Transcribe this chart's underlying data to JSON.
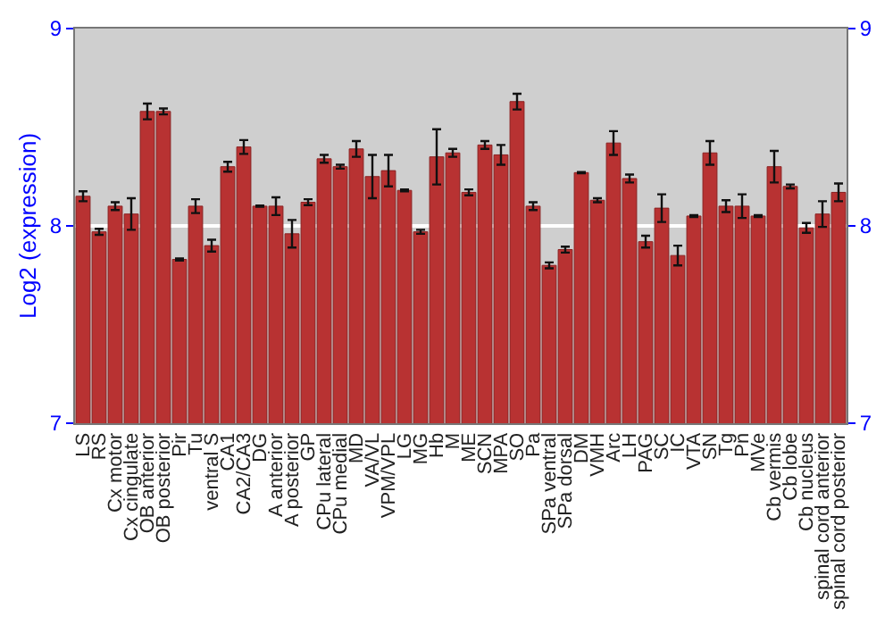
{
  "chart_data": {
    "type": "bar",
    "ylabel": "Log2 (expression)",
    "categories": [
      "LS",
      "RS",
      "Cx motor",
      "Cx cingulate",
      "OB anterior",
      "OB posterior",
      "Pir",
      "Tu",
      "ventral S",
      "CA1",
      "CA2/CA3",
      "DG",
      "A anterior",
      "A posterior",
      "GP",
      "CPu lateral",
      "CPu medial",
      "MD",
      "VA/VL",
      "VPM/VPL",
      "LG",
      "MG",
      "Hb",
      "M",
      "ME",
      "SCN",
      "MPA",
      "SO",
      "Pa",
      "SPa ventral",
      "SPa dorsal",
      "DM",
      "VMH",
      "Arc",
      "LH",
      "PAG",
      "SC",
      "IC",
      "VTA",
      "SN",
      "Tg",
      "Pn",
      "MVe",
      "Cb vermis",
      "Cb lobe",
      "Cb nucleus",
      "spinal cord anterior",
      "spinal cord posterior"
    ],
    "series": [
      {
        "color": "#b83232",
        "values": [
          8.15,
          7.97,
          8.1,
          8.06,
          8.58,
          8.58,
          7.83,
          8.1,
          7.9,
          8.3,
          8.4,
          8.1,
          8.1,
          7.96,
          8.12,
          8.34,
          8.3,
          8.39,
          8.25,
          8.28,
          8.18,
          7.97,
          8.35,
          8.37,
          8.17,
          8.41,
          8.36,
          8.63,
          8.1,
          7.8,
          7.88,
          8.27,
          8.13,
          8.42,
          8.24,
          7.92,
          8.09,
          7.85,
          8.05,
          8.37,
          8.1,
          8.1,
          8.05,
          8.3,
          8.2,
          7.99,
          8.06,
          8.17
        ],
        "errors": [
          0.025,
          0.015,
          0.02,
          0.08,
          0.04,
          0.015,
          0.005,
          0.035,
          0.03,
          0.025,
          0.035,
          0.003,
          0.045,
          0.07,
          0.015,
          0.02,
          0.01,
          0.04,
          0.11,
          0.08,
          0.005,
          0.01,
          0.14,
          0.02,
          0.015,
          0.02,
          0.05,
          0.04,
          0.02,
          0.015,
          0.015,
          0.003,
          0.01,
          0.06,
          0.02,
          0.03,
          0.07,
          0.05,
          0.005,
          0.06,
          0.03,
          0.06,
          0.005,
          0.08,
          0.01,
          0.025,
          0.065,
          0.045
        ]
      }
    ],
    "ylim": [
      7,
      9
    ],
    "yticks": [
      7,
      8,
      9
    ],
    "y2lim": [
      7,
      9
    ],
    "y2ticks": [
      7,
      8,
      9
    ],
    "grid": "y",
    "legend": false
  }
}
